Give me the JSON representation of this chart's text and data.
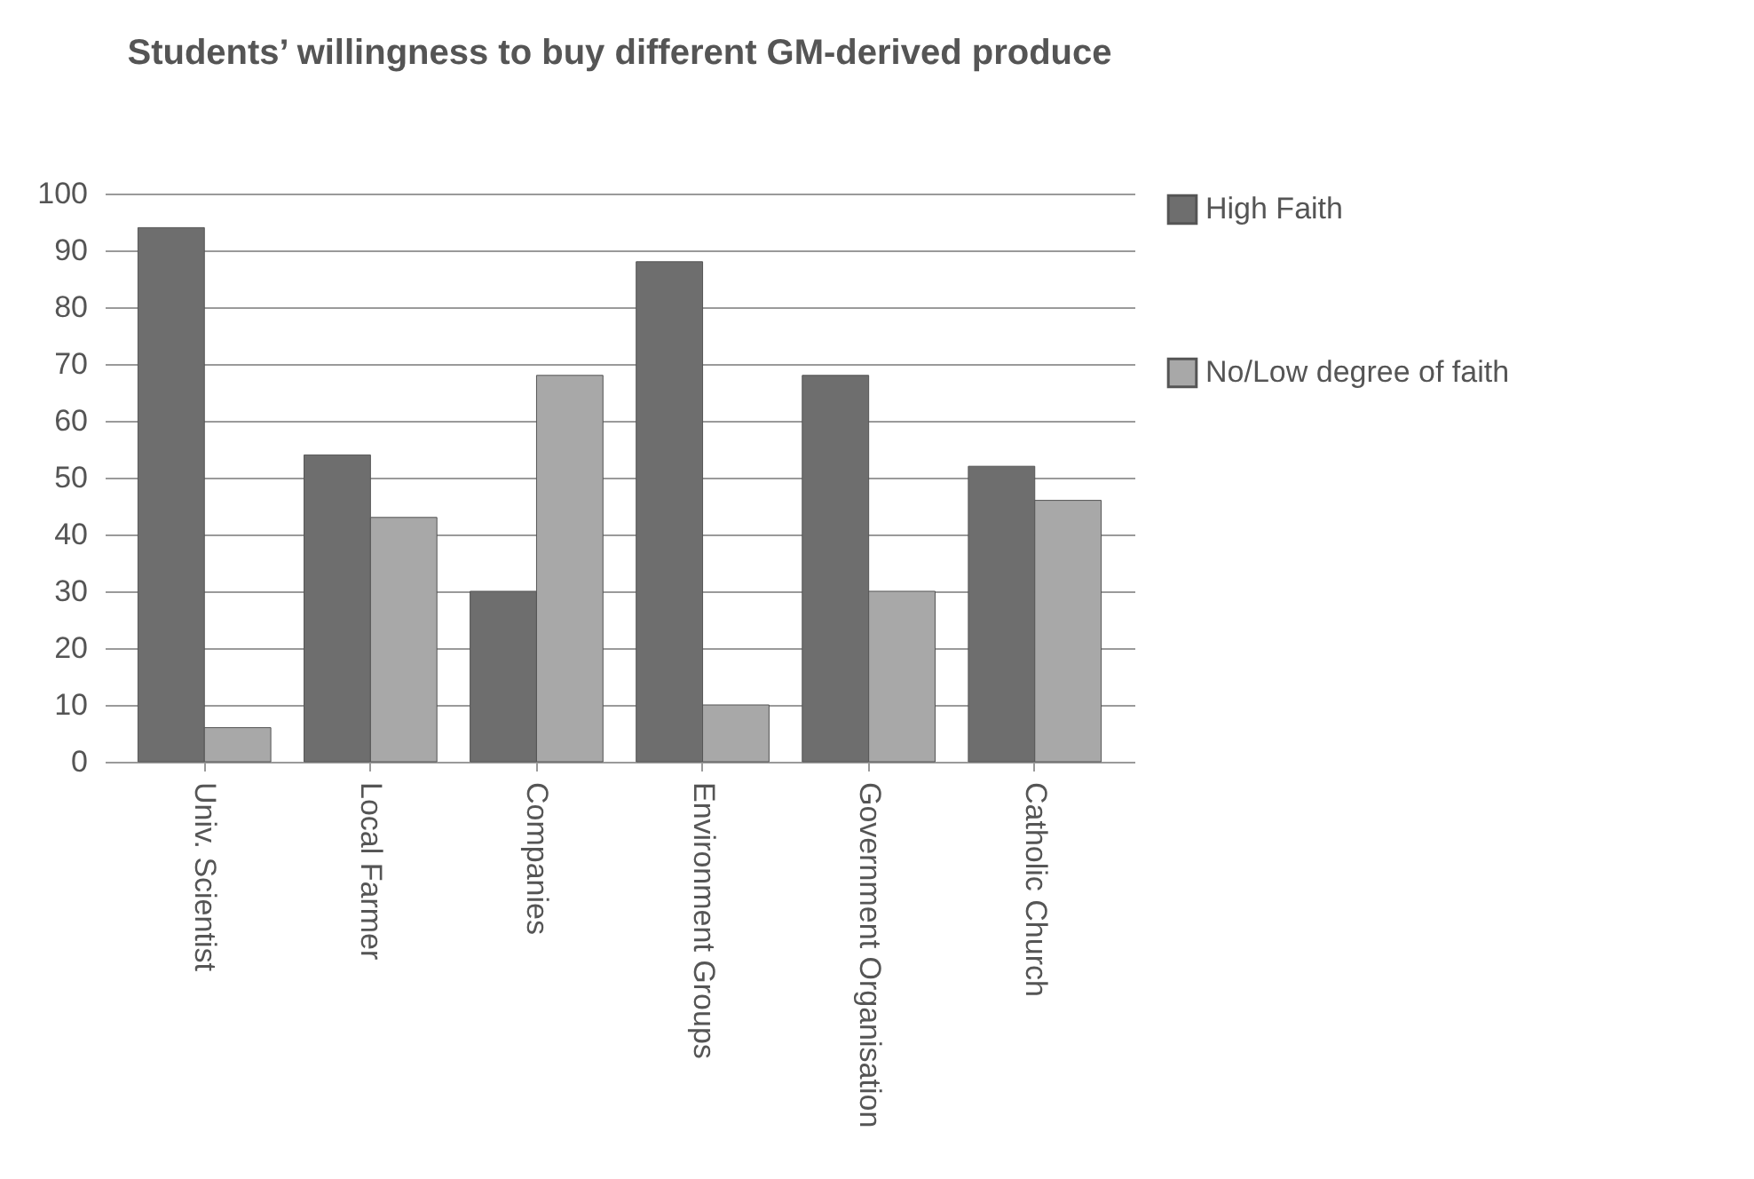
{
  "chart_data": {
    "type": "bar",
    "title": "Students’ willingness to buy different GM-derived produce",
    "categories": [
      "Univ. Scientist",
      "Local Farmer",
      "Companies",
      "Environment Groups",
      "Government Organisation",
      "Catholic Church"
    ],
    "series": [
      {
        "name": "High Faith",
        "color": "#6e6e6e",
        "values": [
          94,
          54,
          30,
          88,
          68,
          52
        ]
      },
      {
        "name": "No/Low degree of faith",
        "color": "#a8a8a8",
        "values": [
          6,
          43,
          68,
          10,
          30,
          46
        ]
      }
    ],
    "ylim": [
      0,
      100
    ],
    "yticks": [
      0,
      10,
      20,
      30,
      40,
      50,
      60,
      70,
      80,
      90,
      100
    ],
    "grid": "y",
    "legend": "right"
  }
}
